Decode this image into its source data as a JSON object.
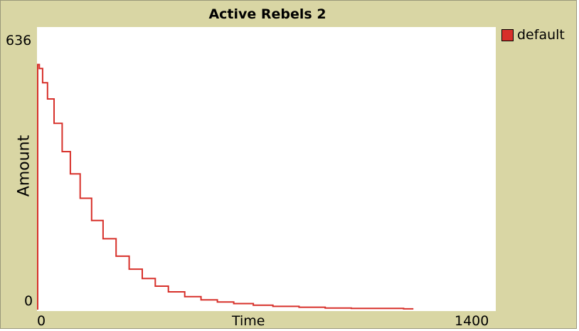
{
  "chart_data": {
    "type": "line",
    "title": "Active Rebels 2",
    "xlabel": "Time",
    "ylabel": "Amount",
    "xlim": [
      0,
      1400
    ],
    "ylim": [
      0,
      636
    ],
    "x_tick_labels": [
      "0",
      "1400"
    ],
    "y_tick_labels": [
      "0",
      "636"
    ],
    "legend_position": "right",
    "series": [
      {
        "name": "default",
        "color": "#d7302a",
        "points": [
          [
            0,
            0
          ],
          [
            0,
            605
          ],
          [
            5,
            595
          ],
          [
            15,
            560
          ],
          [
            30,
            520
          ],
          [
            50,
            460
          ],
          [
            75,
            390
          ],
          [
            100,
            335
          ],
          [
            130,
            275
          ],
          [
            165,
            220
          ],
          [
            200,
            175
          ],
          [
            240,
            132
          ],
          [
            280,
            100
          ],
          [
            320,
            77
          ],
          [
            360,
            58
          ],
          [
            400,
            44
          ],
          [
            450,
            32
          ],
          [
            500,
            24
          ],
          [
            550,
            19
          ],
          [
            600,
            15
          ],
          [
            660,
            11
          ],
          [
            720,
            8
          ],
          [
            800,
            6
          ],
          [
            880,
            4
          ],
          [
            960,
            3
          ],
          [
            1040,
            3
          ],
          [
            1120,
            2
          ],
          [
            1150,
            2
          ]
        ]
      }
    ]
  }
}
